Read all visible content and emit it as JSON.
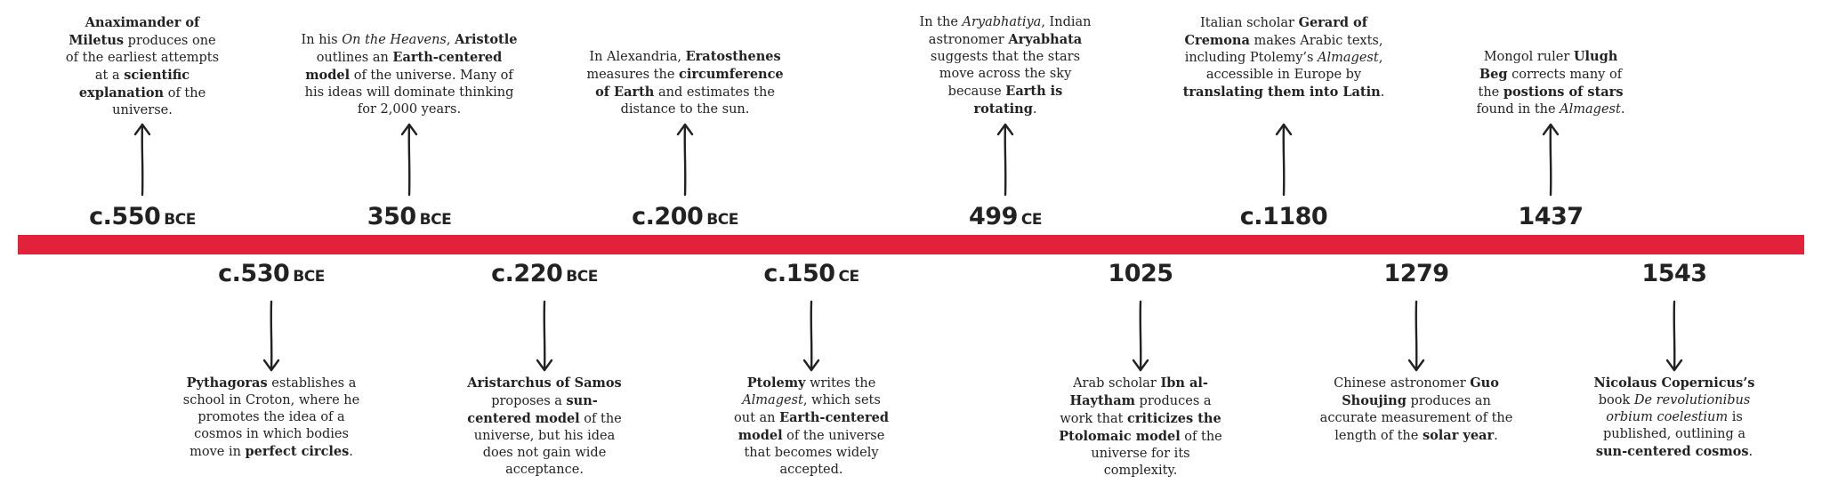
{
  "events": [
    {
      "id": "anaximander",
      "side": "top",
      "date_num": "c.550",
      "date_era": "BCE",
      "segments": [
        {
          "t": "Anaximander of Miletus",
          "b": true
        },
        {
          "t": " produces one of the earliest attempts at a "
        },
        {
          "t": "scientific explanation",
          "b": true
        },
        {
          "t": " of the universe."
        }
      ]
    },
    {
      "id": "pythagoras",
      "side": "bottom",
      "date_num": "c.530",
      "date_era": "BCE",
      "segments": [
        {
          "t": "Pythagoras",
          "b": true
        },
        {
          "t": " establishes a school in Croton, where he promotes the idea of a cosmos in which bodies move in "
        },
        {
          "t": "perfect circles",
          "b": true
        },
        {
          "t": "."
        }
      ]
    },
    {
      "id": "aristotle",
      "side": "top",
      "date_num": "350",
      "date_era": "BCE",
      "segments": [
        {
          "t": "In his "
        },
        {
          "t": "On the Heavens",
          "i": true
        },
        {
          "t": ", "
        },
        {
          "t": "Aristotle",
          "b": true
        },
        {
          "t": " outlines an "
        },
        {
          "t": "Earth-centered model",
          "b": true
        },
        {
          "t": " of the universe. Many of his ideas will dominate thinking for 2,000 years."
        }
      ]
    },
    {
      "id": "aristarchus",
      "side": "bottom",
      "date_num": "c.220",
      "date_era": "BCE",
      "segments": [
        {
          "t": "Aristarchus of Samos",
          "b": true
        },
        {
          "t": " proposes a "
        },
        {
          "t": "sun-centered model",
          "b": true
        },
        {
          "t": " of the universe, but his idea does not gain wide acceptance."
        }
      ]
    },
    {
      "id": "eratosthenes",
      "side": "top",
      "date_num": "c.200",
      "date_era": "BCE",
      "segments": [
        {
          "t": "In Alexandria, "
        },
        {
          "t": "Eratosthenes",
          "b": true
        },
        {
          "t": " measures the "
        },
        {
          "t": "circumference of Earth",
          "b": true
        },
        {
          "t": " and estimates the distance to the sun."
        }
      ]
    },
    {
      "id": "ptolemy",
      "side": "bottom",
      "date_num": "c.150",
      "date_era": "CE",
      "segments": [
        {
          "t": "Ptolemy",
          "b": true
        },
        {
          "t": " writes the "
        },
        {
          "t": "Almagest",
          "i": true
        },
        {
          "t": ", which sets out an "
        },
        {
          "t": "Earth-centered model",
          "b": true
        },
        {
          "t": " of the universe that becomes widely accepted."
        }
      ]
    },
    {
      "id": "aryabhata",
      "side": "top",
      "date_num": "499",
      "date_era": "CE",
      "segments": [
        {
          "t": "In the "
        },
        {
          "t": "Aryabhatiya",
          "i": true
        },
        {
          "t": ", Indian astronomer "
        },
        {
          "t": "Aryabhata",
          "b": true
        },
        {
          "t": " suggests that the stars move across the sky because "
        },
        {
          "t": "Earth is rotating",
          "b": true
        },
        {
          "t": "."
        }
      ]
    },
    {
      "id": "ibn-al-haytham",
      "side": "bottom",
      "date_num": "1025",
      "date_era": "",
      "segments": [
        {
          "t": "Arab scholar "
        },
        {
          "t": "Ibn al-Haytham",
          "b": true
        },
        {
          "t": " produces a work that "
        },
        {
          "t": "criticizes the Ptolomaic model",
          "b": true
        },
        {
          "t": " of the universe for its complexity."
        }
      ]
    },
    {
      "id": "gerard-of-cremona",
      "side": "top",
      "date_num": "c.1180",
      "date_era": "",
      "segments": [
        {
          "t": "Italian scholar "
        },
        {
          "t": "Gerard of Cremona",
          "b": true
        },
        {
          "t": " makes Arabic texts, including Ptolemy’s "
        },
        {
          "t": "Almagest",
          "i": true
        },
        {
          "t": ", accessible in Europe by "
        },
        {
          "t": "translating them into Latin",
          "b": true
        },
        {
          "t": "."
        }
      ]
    },
    {
      "id": "guo-shoujing",
      "side": "bottom",
      "date_num": "1279",
      "date_era": "",
      "segments": [
        {
          "t": "Chinese astronomer "
        },
        {
          "t": "Guo Shoujing",
          "b": true
        },
        {
          "t": " produces an accurate measurement of the length of the "
        },
        {
          "t": "solar year",
          "b": true
        },
        {
          "t": "."
        }
      ]
    },
    {
      "id": "ulugh-beg",
      "side": "top",
      "date_num": "1437",
      "date_era": "",
      "segments": [
        {
          "t": "Mongol ruler "
        },
        {
          "t": "Ulugh Beg",
          "b": true
        },
        {
          "t": " corrects many of the "
        },
        {
          "t": "postions of stars",
          "b": true
        },
        {
          "t": " found in the "
        },
        {
          "t": "Almagest",
          "i": true
        },
        {
          "t": "."
        }
      ]
    },
    {
      "id": "copernicus",
      "side": "bottom",
      "date_num": "1543",
      "date_era": "",
      "segments": [
        {
          "t": "Nicolaus Copernicus’s",
          "b": true
        },
        {
          "t": " book "
        },
        {
          "t": "De revolutionibus orbium coelestium",
          "i": true
        },
        {
          "t": " is published, outlining a "
        },
        {
          "t": "sun-centered cosmos",
          "b": true
        },
        {
          "t": "."
        }
      ]
    }
  ]
}
